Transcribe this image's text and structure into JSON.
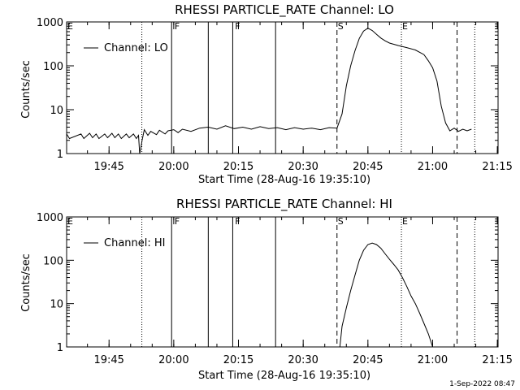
{
  "footer": {
    "date": "1-Sep-2022 08:47"
  },
  "chart_data": [
    {
      "type": "line",
      "title": "RHESSI PARTICLE_RATE Channel: LO",
      "xlabel": "Start Time (28-Aug-16 19:35:10)",
      "ylabel": "Counts/sec",
      "xlim_minutes": [
        0,
        100
      ],
      "xticks": [
        "19:45",
        "20:00",
        "20:15",
        "20:30",
        "20:45",
        "21:00",
        "21:15"
      ],
      "yscale": "log",
      "ylim": [
        1,
        1000
      ],
      "yticks": [
        "1",
        "10",
        "100",
        "1000"
      ],
      "legend": {
        "label": "Channel: LO",
        "position": "top-left"
      },
      "markers": [
        {
          "time": "19:52:36",
          "style": "dotted",
          "label": ""
        },
        {
          "time": "19:59:30",
          "style": "solid",
          "label": ""
        },
        {
          "time": "20:08:00",
          "style": "solid",
          "label": ""
        },
        {
          "time": "20:13:40",
          "style": "solid",
          "label": ""
        },
        {
          "time": "20:23:36",
          "style": "solid",
          "label": ""
        },
        {
          "time": "20:37:50",
          "style": "dashed",
          "label": "S"
        },
        {
          "time": "20:52:46",
          "style": "dotted",
          "label": "E"
        },
        {
          "time": "21:05:40",
          "style": "dashed",
          "label": ""
        },
        {
          "time": "21:09:46",
          "style": "dotted",
          "label": ""
        }
      ],
      "top_labels": [
        {
          "time": "19:35:10",
          "label": "E"
        },
        {
          "time": "20:00:00",
          "label": "F"
        },
        {
          "time": "20:14:00",
          "label": "F"
        }
      ],
      "series": [
        {
          "t": [
            "19:35:10",
            "19:35:50",
            "19:38:30",
            "19:39:10",
            "19:40:30",
            "19:41:10",
            "19:42:00",
            "19:42:40",
            "19:44:00",
            "19:44:40",
            "19:45:40",
            "19:46:20",
            "19:47:10",
            "19:47:50",
            "19:49:00",
            "19:49:40",
            "19:50:40",
            "19:51:20",
            "19:51:50",
            "19:52:06",
            "19:52:20",
            "19:52:40",
            "19:53:10",
            "19:54:00",
            "19:54:40",
            "19:56:00",
            "19:56:40",
            "19:58:00",
            "19:58:40",
            "20:00:00",
            "20:01:00",
            "20:02:00",
            "20:04:00",
            "20:06:00",
            "20:08:00",
            "20:10:00",
            "20:12:00",
            "20:14:00",
            "20:16:00",
            "20:18:00",
            "20:20:00",
            "20:22:00",
            "20:24:00",
            "20:26:00",
            "20:28:00",
            "20:30:00",
            "20:32:00",
            "20:34:00",
            "20:36:00",
            "20:37:50",
            "20:39:00",
            "20:40:00",
            "20:41:00",
            "20:42:00",
            "20:43:00",
            "20:44:00",
            "20:45:00",
            "20:46:00",
            "20:47:00",
            "20:48:00",
            "20:49:00",
            "20:50:00",
            "20:52:00",
            "20:54:00",
            "20:56:00",
            "20:58:00",
            "20:59:00",
            "21:00:00",
            "21:01:00",
            "21:02:00",
            "21:03:00",
            "21:04:00",
            "21:05:00",
            "21:06:00",
            "21:07:00",
            "21:08:00",
            "21:09:00"
          ],
          "y": [
            2.8,
            2.2,
            2.8,
            2.2,
            2.9,
            2.3,
            2.8,
            2.2,
            2.8,
            2.3,
            2.9,
            2.3,
            2.8,
            2.2,
            2.8,
            2.3,
            2.8,
            2.2,
            2.6,
            1.0,
            1.3,
            2.0,
            3.5,
            2.6,
            3.2,
            2.7,
            3.4,
            2.8,
            3.3,
            3.5,
            3.0,
            3.6,
            3.2,
            3.8,
            4.0,
            3.6,
            4.3,
            3.7,
            4.0,
            3.6,
            4.1,
            3.7,
            3.9,
            3.5,
            3.9,
            3.6,
            3.8,
            3.5,
            3.9,
            3.8,
            8,
            35,
            100,
            220,
            420,
            620,
            720,
            640,
            520,
            430,
            370,
            330,
            290,
            260,
            230,
            180,
            130,
            90,
            45,
            12,
            5,
            3.3,
            3.8,
            3.2,
            3.6,
            3.3,
            3.6
          ]
        }
      ]
    },
    {
      "type": "line",
      "title": "RHESSI PARTICLE_RATE Channel: HI",
      "xlabel": "Start Time (28-Aug-16 19:35:10)",
      "ylabel": "Counts/sec",
      "xlim_minutes": [
        0,
        100
      ],
      "xticks": [
        "19:45",
        "20:00",
        "20:15",
        "20:30",
        "20:45",
        "21:00",
        "21:15"
      ],
      "yscale": "log",
      "ylim": [
        1,
        1000
      ],
      "yticks": [
        "1",
        "10",
        "100",
        "1000"
      ],
      "legend": {
        "label": "Channel: HI",
        "position": "top-left"
      },
      "markers": [
        {
          "time": "19:52:36",
          "style": "dotted",
          "label": ""
        },
        {
          "time": "19:59:30",
          "style": "solid",
          "label": ""
        },
        {
          "time": "20:08:00",
          "style": "solid",
          "label": ""
        },
        {
          "time": "20:13:40",
          "style": "solid",
          "label": ""
        },
        {
          "time": "20:23:36",
          "style": "solid",
          "label": ""
        },
        {
          "time": "20:37:50",
          "style": "dashed",
          "label": "S"
        },
        {
          "time": "20:52:46",
          "style": "dotted",
          "label": "E"
        },
        {
          "time": "21:05:40",
          "style": "dashed",
          "label": ""
        },
        {
          "time": "21:09:46",
          "style": "dotted",
          "label": ""
        }
      ],
      "top_labels": [
        {
          "time": "19:35:10",
          "label": "E"
        },
        {
          "time": "20:00:00",
          "label": "F"
        },
        {
          "time": "20:14:00",
          "label": "F"
        }
      ],
      "series": [
        {
          "t": [
            "20:38:30",
            "20:39:00",
            "20:40:00",
            "20:41:00",
            "20:42:00",
            "20:43:00",
            "20:44:00",
            "20:45:00",
            "20:46:00",
            "20:47:00",
            "20:48:00",
            "20:49:00",
            "20:50:00",
            "20:51:00",
            "20:52:00",
            "20:53:00",
            "20:54:00",
            "20:55:00",
            "20:56:00",
            "20:57:00",
            "20:58:00",
            "20:59:00",
            "21:00:00"
          ],
          "y": [
            1,
            3,
            8,
            20,
            45,
            100,
            170,
            230,
            250,
            230,
            190,
            140,
            105,
            80,
            60,
            40,
            25,
            15,
            10,
            6,
            3.5,
            2,
            1
          ]
        }
      ]
    }
  ]
}
